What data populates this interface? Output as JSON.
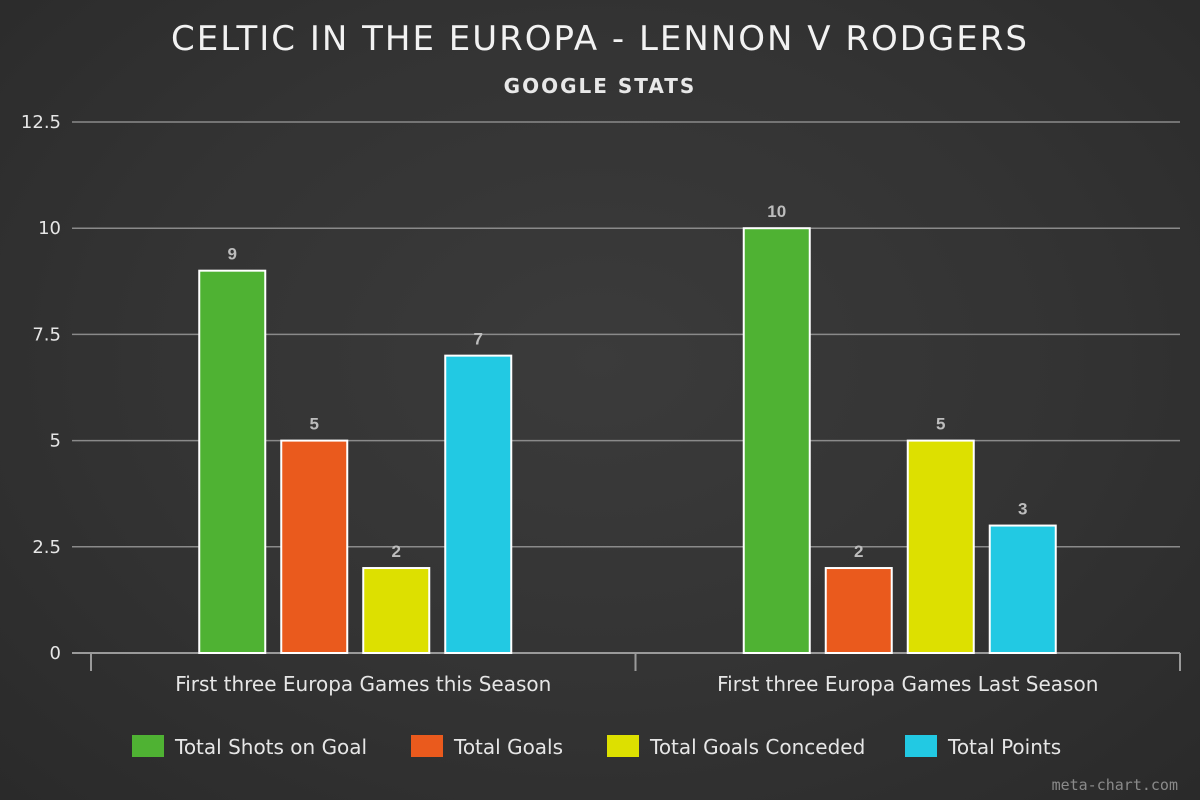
{
  "chart_data": {
    "type": "bar",
    "title": "CELTIC IN THE EUROPA - LENNON V RODGERS",
    "subtitle": "GOOGLE STATS",
    "categories": [
      "First three Europa Games this Season",
      "First three Europa Games Last Season"
    ],
    "series": [
      {
        "name": "Total Shots on Goal",
        "color": "#4fb233",
        "values": [
          9,
          10
        ]
      },
      {
        "name": "Total Goals",
        "color": "#ea5a1d",
        "values": [
          5,
          2
        ]
      },
      {
        "name": "Total Goals Conceded",
        "color": "#dde000",
        "values": [
          2,
          5
        ]
      },
      {
        "name": "Total Points",
        "color": "#22c9e3",
        "values": [
          7,
          3
        ]
      }
    ],
    "yticks": [
      "0",
      "2.5",
      "5",
      "7.5",
      "10",
      "12.5"
    ],
    "ylim": [
      0,
      12.5
    ],
    "grid": true,
    "legend_position": "bottom",
    "xlabel": "",
    "ylabel": ""
  },
  "watermark": "meta-chart.com"
}
